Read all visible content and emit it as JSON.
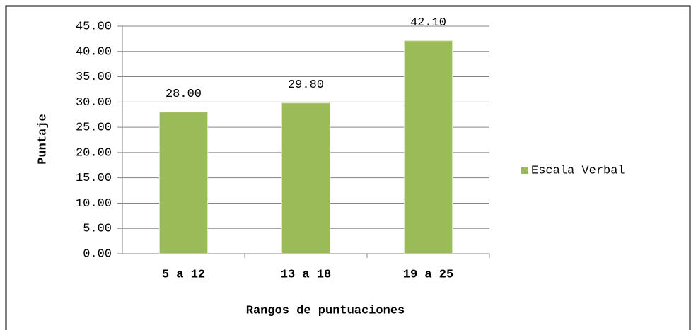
{
  "chart_data": {
    "type": "bar",
    "categories": [
      "5 a 12",
      "13 a 18",
      "19 a 25"
    ],
    "series": [
      {
        "name": "Escala Verbal",
        "color": "#9bbb59",
        "values": [
          28,
          29.8,
          42.1
        ],
        "value_labels": [
          "28.00",
          "29.80",
          "42.10"
        ]
      }
    ],
    "ylim": [
      0,
      45
    ],
    "yticks": [
      {
        "value": 0,
        "label": "0.00"
      },
      {
        "value": 5,
        "label": "5.00"
      },
      {
        "value": 10,
        "label": "10.00"
      },
      {
        "value": 15,
        "label": "15.00"
      },
      {
        "value": 20,
        "label": "20.00"
      },
      {
        "value": 25,
        "label": "25.00"
      },
      {
        "value": 30,
        "label": "30.00"
      },
      {
        "value": 35,
        "label": "35.00"
      },
      {
        "value": 40,
        "label": "40.00"
      },
      {
        "value": 45,
        "label": "45.00"
      }
    ],
    "xlabel": "Rangos de puntuaciones",
    "ylabel": "Puntaje",
    "grid": true,
    "legend": "right"
  }
}
